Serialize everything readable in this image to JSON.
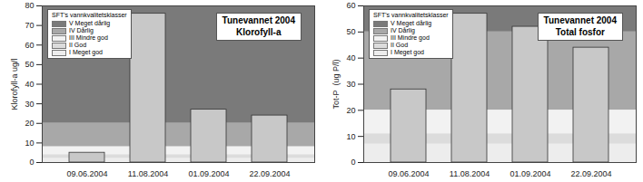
{
  "chart_data": [
    {
      "type": "bar",
      "title": [
        "Tunevannet 2004",
        "Klorofyll-a"
      ],
      "ylabel": "Klorofyll-a ug/l",
      "categories": [
        "09.06.2004",
        "11.08.2004",
        "01.09.2004",
        "22.09.2004"
      ],
      "values": [
        5,
        76,
        27,
        24
      ],
      "color": "#c8c8c8",
      "ylim": [
        0,
        80
      ],
      "yticks": [
        0,
        10,
        20,
        30,
        40,
        50,
        60,
        70,
        80
      ],
      "grid": false,
      "legend": "top-left",
      "legend_title": "SFT's vannkvalitetsklasser",
      "bands": [
        {
          "label": "V Meget dårlig",
          "lower": 20,
          "upper": 80,
          "color": "#7a7a7a"
        },
        {
          "label": "IV Dårlig",
          "lower": 8,
          "upper": 20,
          "color": "#a8a8a8"
        },
        {
          "label": "III Mindre god",
          "lower": 4,
          "upper": 8,
          "color": "#f2f2f2"
        },
        {
          "label": "II God",
          "lower": 2,
          "upper": 4,
          "color": "#dcdcdc"
        },
        {
          "label": "I Meget god",
          "lower": 0,
          "upper": 2,
          "color": "#ededed"
        }
      ]
    },
    {
      "type": "bar",
      "title": [
        "Tunevannet 2004",
        "Total fosfor"
      ],
      "ylabel": "Tot-P  (ug P/l)",
      "categories": [
        "09.06.2004",
        "11.08.2004",
        "01.09.2004",
        "22.09.2004"
      ],
      "values": [
        28,
        57,
        52,
        44
      ],
      "color": "#c8c8c8",
      "ylim": [
        0,
        60
      ],
      "yticks": [
        0,
        10,
        20,
        30,
        40,
        50,
        60
      ],
      "grid": false,
      "legend": "top-left",
      "legend_title": "SFT's vannkvalitetsklasser",
      "bands": [
        {
          "label": "V Meget dårlig",
          "lower": 50,
          "upper": 60,
          "color": "#7a7a7a"
        },
        {
          "label": "IV Dårlig",
          "lower": 20,
          "upper": 50,
          "color": "#a8a8a8"
        },
        {
          "label": "III Mindre god",
          "lower": 11,
          "upper": 20,
          "color": "#f2f2f2"
        },
        {
          "label": "II God",
          "lower": 7,
          "upper": 11,
          "color": "#dcdcdc"
        },
        {
          "label": "I Meget god",
          "lower": 0,
          "upper": 7,
          "color": "#ededed"
        }
      ]
    }
  ]
}
